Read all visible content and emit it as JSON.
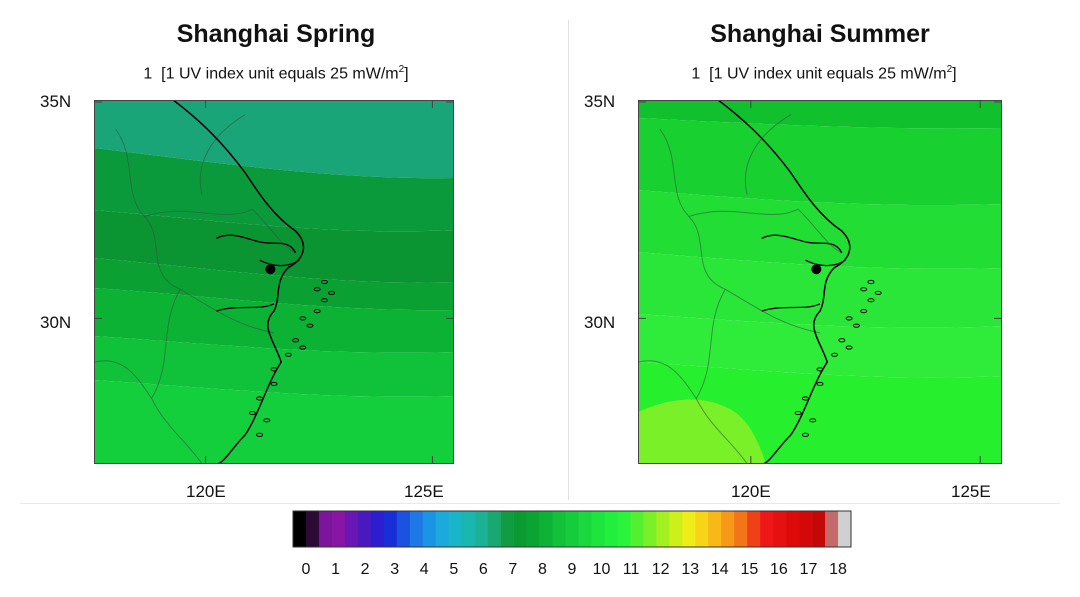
{
  "panels": [
    {
      "title": "Shanghai Spring",
      "subtitle_lead": "1",
      "subtitle_text": "[1 UV index unit equals 25 mW/m",
      "subtitle_sup": "2",
      "subtitle_close": "]",
      "lat_labels": [
        "35N",
        "30N"
      ],
      "lon_labels": [
        "120E",
        "125E"
      ],
      "bands": [
        {
          "uv": 7.5,
          "color": "#1aa579"
        },
        {
          "uv": 8.0,
          "color": "#0a9a3c"
        },
        {
          "uv": 8.5,
          "color": "#0a9432"
        },
        {
          "uv": 8.8,
          "color": "#0aa032"
        },
        {
          "uv": 9.2,
          "color": "#0cb233"
        },
        {
          "uv": 9.6,
          "color": "#10c23a"
        },
        {
          "uv": 10.0,
          "color": "#14cf3c"
        }
      ]
    },
    {
      "title": "Shanghai Summer",
      "subtitle_lead": "1",
      "subtitle_text": "[1 UV index unit equals 25 mW/m",
      "subtitle_sup": "2",
      "subtitle_close": "]",
      "lat_labels": [
        "35N",
        "30N"
      ],
      "lon_labels": [
        "120E",
        "125E"
      ],
      "bands": [
        {
          "uv": 9.5,
          "color": "#10c02c"
        },
        {
          "uv": 10.0,
          "color": "#18d030"
        },
        {
          "uv": 10.5,
          "color": "#22de34"
        },
        {
          "uv": 10.8,
          "color": "#2ae638"
        },
        {
          "uv": 11.0,
          "color": "#30ec3a"
        },
        {
          "uv": 11.3,
          "color": "#26f02e"
        }
      ],
      "hotspot": {
        "uv": 11.5,
        "color": "#7af028"
      }
    }
  ],
  "colorbar": {
    "labels": [
      "0",
      "1",
      "2",
      "3",
      "4",
      "5",
      "6",
      "7",
      "8",
      "9",
      "10",
      "11",
      "12",
      "13",
      "14",
      "15",
      "16",
      "17",
      "18"
    ],
    "colors": [
      "#000000",
      "#2b0a33",
      "#7c159c",
      "#8a14a6",
      "#6a16b4",
      "#4a18bf",
      "#2b1ed0",
      "#1a2ed8",
      "#1c52e0",
      "#1e78e6",
      "#1c94e6",
      "#1caadc",
      "#1ab6c8",
      "#1ab6b0",
      "#1ab296",
      "#18a870",
      "#119c44",
      "#0a9a30",
      "#0aa432",
      "#0eb236",
      "#12c03a",
      "#16cc3c",
      "#1ad83e",
      "#1ee43e",
      "#22ee3e",
      "#2af43a",
      "#52f030",
      "#7af028",
      "#a4f020",
      "#ccf01a",
      "#f0ec18",
      "#f8d418",
      "#f8b818",
      "#f89818",
      "#f47418",
      "#f04018",
      "#ee1616",
      "#e61010",
      "#de0a0a",
      "#d40808",
      "#c40808",
      "#c46a6a",
      "#d0d0d0"
    ]
  }
}
